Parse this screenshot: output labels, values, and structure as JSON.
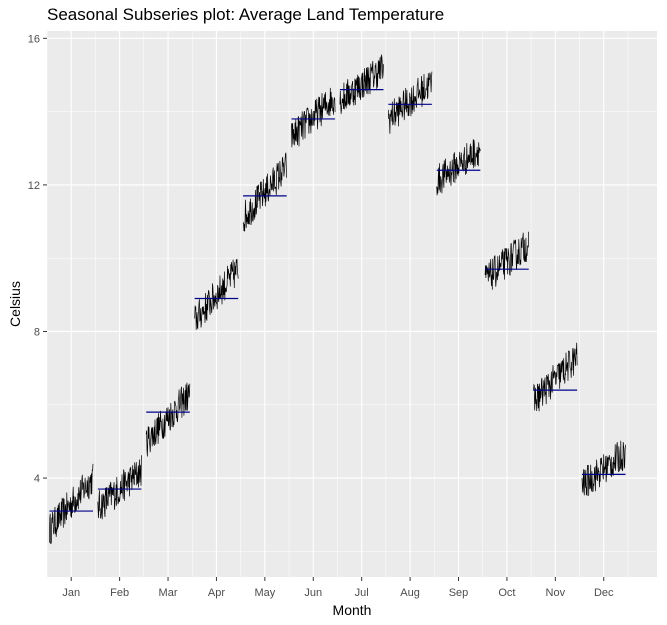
{
  "chart_data": {
    "type": "line",
    "title": "Seasonal Subseries plot: Average Land Temperature",
    "xlabel": "Month",
    "ylabel": "Celsius",
    "ylim": [
      1.3,
      16.2
    ],
    "yticks": [
      4,
      8,
      12,
      16
    ],
    "grid": true,
    "legend": "none",
    "categories": [
      "Jan",
      "Feb",
      "Mar",
      "Apr",
      "May",
      "Jun",
      "Jul",
      "Aug",
      "Sep",
      "Oct",
      "Nov",
      "Dec"
    ],
    "monthly_mean": [
      3.1,
      3.7,
      5.8,
      8.9,
      11.7,
      13.8,
      14.6,
      14.2,
      12.4,
      9.7,
      6.4,
      4.1
    ],
    "subseries_start": [
      2.6,
      3.2,
      5.0,
      8.3,
      11.1,
      13.3,
      14.3,
      13.8,
      12.1,
      9.4,
      6.1,
      3.8
    ],
    "subseries_end": [
      4.0,
      4.2,
      6.3,
      9.7,
      12.5,
      14.4,
      15.2,
      14.8,
      13.0,
      10.4,
      7.3,
      4.7
    ],
    "colors": {
      "series": "#000000",
      "mean_line": "#00008b",
      "panel": "#ebebeb",
      "grid": "#ffffff"
    }
  }
}
